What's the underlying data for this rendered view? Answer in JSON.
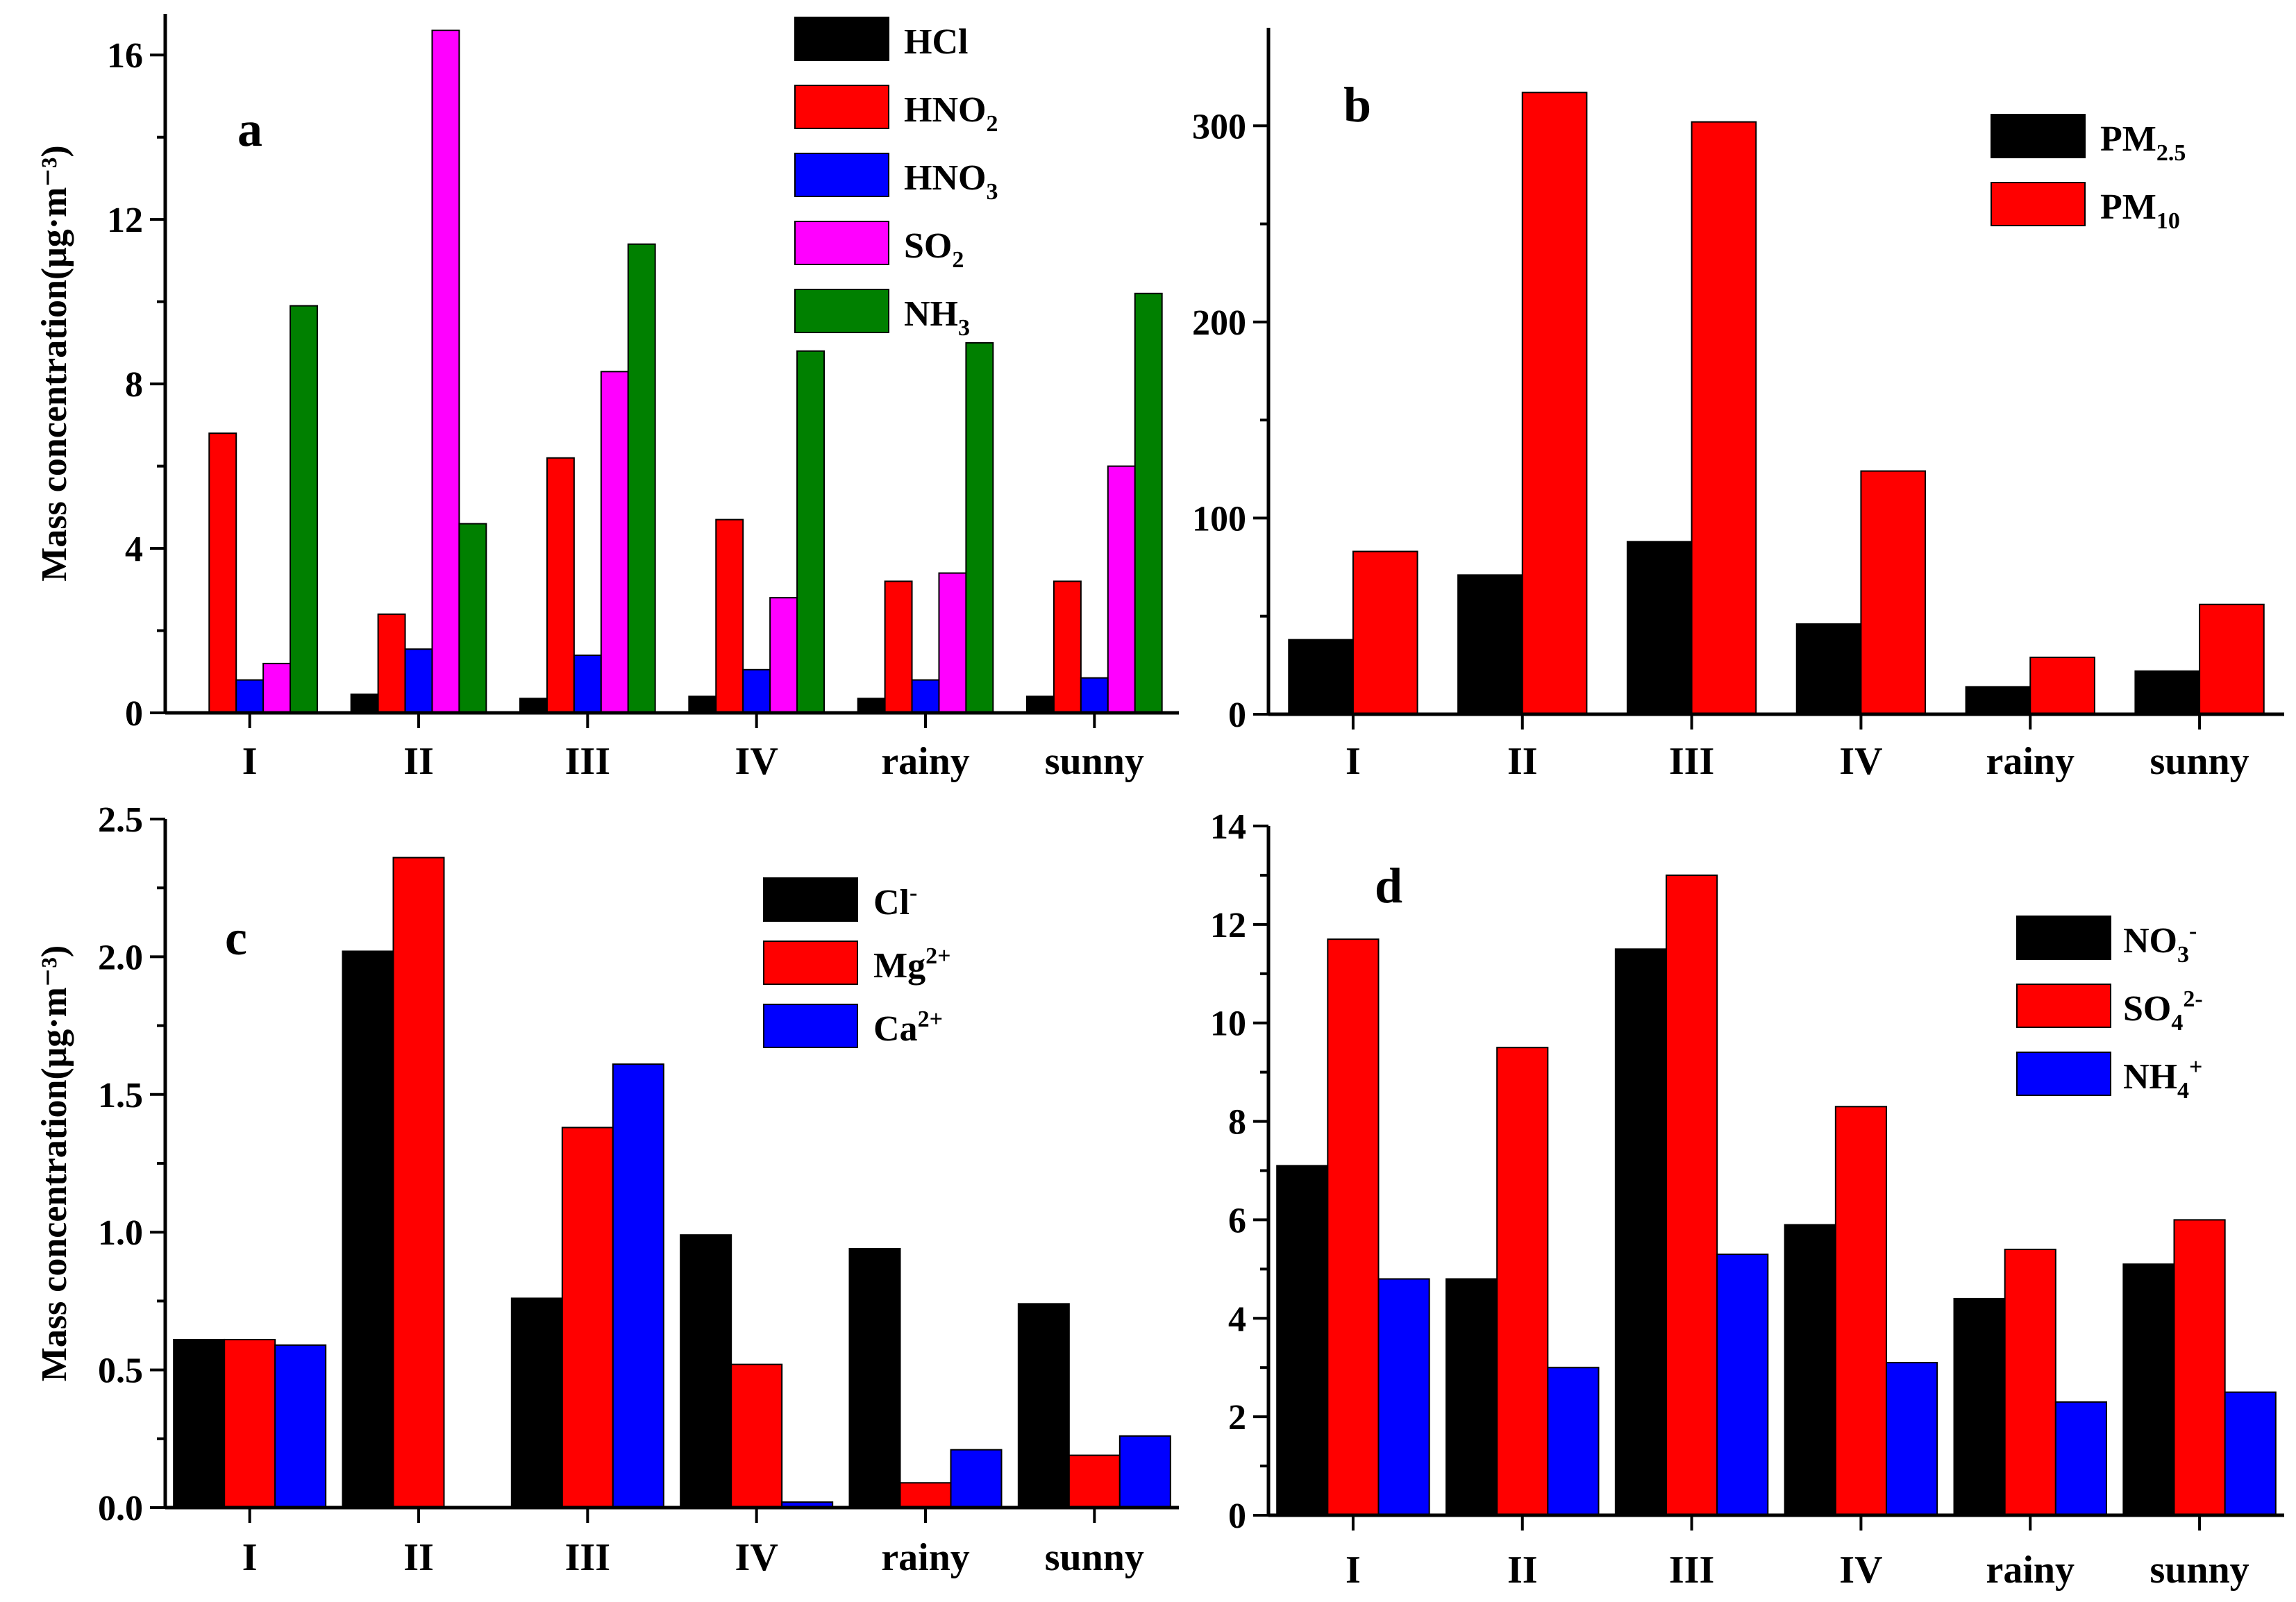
{
  "chart_data": [
    {
      "id": "a",
      "type": "bar",
      "panel_label": "a",
      "ylabel": "Mass concentration(μg·m⁻³)",
      "categories": [
        "I",
        "II",
        "III",
        "IV",
        "rainy",
        "sunny"
      ],
      "ylim": [
        0,
        17
      ],
      "yticks": [
        "0",
        "4",
        "8",
        "12",
        "16"
      ],
      "ytick_values": [
        0,
        4,
        8,
        12,
        16
      ],
      "legend_position": "top-right",
      "series": [
        {
          "name": "HCl",
          "label_main": "HCl",
          "label_sub": "",
          "label_sup": "",
          "color": "#000000",
          "values": [
            0.0,
            0.45,
            0.35,
            0.4,
            0.35,
            0.4
          ]
        },
        {
          "name": "HNO2",
          "label_main": "HNO",
          "label_sub": "2",
          "label_sup": "",
          "color": "#ff0000",
          "values": [
            6.8,
            2.4,
            6.2,
            4.7,
            3.2,
            3.2
          ]
        },
        {
          "name": "HNO3",
          "label_main": "HNO",
          "label_sub": "3",
          "label_sup": "",
          "color": "#0000ff",
          "values": [
            0.8,
            1.55,
            1.4,
            1.05,
            0.8,
            0.85
          ]
        },
        {
          "name": "SO2",
          "label_main": "SO",
          "label_sub": "2",
          "label_sup": "",
          "color": "#ff00ff",
          "values": [
            1.2,
            16.6,
            8.3,
            2.8,
            3.4,
            6.0
          ]
        },
        {
          "name": "NH3",
          "label_main": "NH",
          "label_sub": "3",
          "label_sup": "",
          "color": "#008000",
          "values": [
            9.9,
            4.6,
            11.4,
            8.8,
            9.0,
            10.2
          ]
        }
      ]
    },
    {
      "id": "b",
      "type": "bar",
      "panel_label": "b",
      "ylabel": "",
      "categories": [
        "I",
        "II",
        "III",
        "IV",
        "rainy",
        "sunny"
      ],
      "ylim": [
        0,
        350
      ],
      "yticks": [
        "0",
        "100",
        "200",
        "300"
      ],
      "ytick_values": [
        0,
        100,
        200,
        300
      ],
      "legend_position": "top-right",
      "series": [
        {
          "name": "PM2.5",
          "label_main": "PM",
          "label_sub": "2.5",
          "label_sup": "",
          "color": "#000000",
          "values": [
            38,
            71,
            88,
            46,
            14,
            22
          ]
        },
        {
          "name": "PM10",
          "label_main": "PM",
          "label_sub": "10",
          "label_sup": "",
          "color": "#ff0000",
          "values": [
            83,
            317,
            302,
            124,
            29,
            56
          ]
        }
      ]
    },
    {
      "id": "c",
      "type": "bar",
      "panel_label": "c",
      "ylabel": "Mass concentration(μg·m⁻³)",
      "categories": [
        "I",
        "II",
        "III",
        "IV",
        "rainy",
        "sunny"
      ],
      "ylim": [
        0,
        2.5
      ],
      "yticks": [
        "0.0",
        "0.5",
        "1.0",
        "1.5",
        "2.0",
        "2.5"
      ],
      "ytick_values": [
        0,
        0.5,
        1.0,
        1.5,
        2.0,
        2.5
      ],
      "legend_position": "top-right",
      "series": [
        {
          "name": "Cl-",
          "label_main": "Cl",
          "label_sub": "",
          "label_sup": "-",
          "color": "#000000",
          "values": [
            0.61,
            2.02,
            0.76,
            0.99,
            0.94,
            0.74
          ]
        },
        {
          "name": "Mg2+",
          "label_main": "Mg",
          "label_sub": "",
          "label_sup": "2+",
          "color": "#ff0000",
          "values": [
            0.61,
            2.36,
            1.38,
            0.52,
            0.09,
            0.19
          ]
        },
        {
          "name": "Ca2+",
          "label_main": "Ca",
          "label_sub": "",
          "label_sup": "2+",
          "color": "#0000ff",
          "values": [
            0.59,
            0.0,
            1.61,
            0.02,
            0.21,
            0.26
          ]
        }
      ]
    },
    {
      "id": "d",
      "type": "bar",
      "panel_label": "d",
      "ylabel": "",
      "categories": [
        "I",
        "II",
        "III",
        "IV",
        "rainy",
        "sunny"
      ],
      "ylim": [
        0,
        14
      ],
      "yticks": [
        "0",
        "2",
        "4",
        "6",
        "8",
        "10",
        "12",
        "14"
      ],
      "ytick_values": [
        0,
        2,
        4,
        6,
        8,
        10,
        12,
        14
      ],
      "legend_position": "top-right",
      "series": [
        {
          "name": "NO3-",
          "label_main": "NO",
          "label_sub": "3",
          "label_sup": "-",
          "color": "#000000",
          "values": [
            7.1,
            4.8,
            11.5,
            5.9,
            4.4,
            5.1
          ]
        },
        {
          "name": "SO42-",
          "label_main": "SO",
          "label_sub": "4",
          "label_sup": "2-",
          "color": "#ff0000",
          "values": [
            11.7,
            9.5,
            13.0,
            8.3,
            5.4,
            6.0
          ]
        },
        {
          "name": "NH4+",
          "label_main": "NH",
          "label_sub": "4",
          "label_sup": "+",
          "color": "#0000ff",
          "values": [
            4.8,
            3.0,
            5.3,
            3.1,
            2.3,
            2.5
          ]
        }
      ]
    }
  ]
}
